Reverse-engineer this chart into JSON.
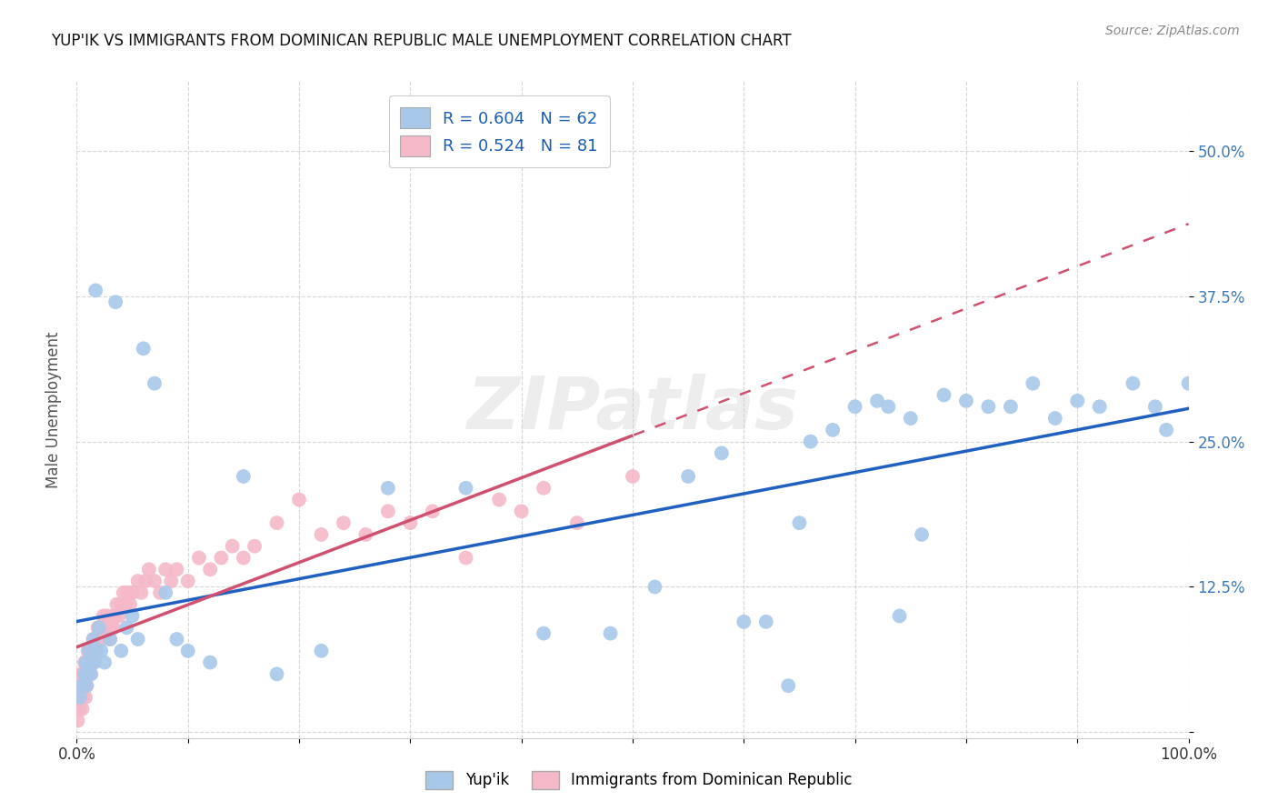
{
  "title": "YUP'IK VS IMMIGRANTS FROM DOMINICAN REPUBLIC MALE UNEMPLOYMENT CORRELATION CHART",
  "source": "Source: ZipAtlas.com",
  "ylabel": "Male Unemployment",
  "xlim": [
    0,
    1.0
  ],
  "ylim": [
    -0.005,
    0.56
  ],
  "xticks": [
    0.0,
    0.1,
    0.2,
    0.3,
    0.4,
    0.5,
    0.6,
    0.7,
    0.8,
    0.9,
    1.0
  ],
  "xticklabels": [
    "0.0%",
    "",
    "",
    "",
    "",
    "",
    "",
    "",
    "",
    "",
    "100.0%"
  ],
  "ytick_positions": [
    0.0,
    0.125,
    0.25,
    0.375,
    0.5
  ],
  "ytick_labels": [
    "",
    "12.5%",
    "25.0%",
    "37.5%",
    "50.0%"
  ],
  "legend1_label": "R = 0.604   N = 62",
  "legend2_label": "R = 0.524   N = 81",
  "series1_color": "#a8c8ea",
  "series2_color": "#f5b8c8",
  "line1_color": "#2060c0",
  "line2_color": "#d05070",
  "background_color": "#ffffff",
  "watermark": "ZIPatlas",
  "yupik_x": [
    0.003,
    0.005,
    0.007,
    0.008,
    0.009,
    0.01,
    0.011,
    0.012,
    0.013,
    0.015,
    0.016,
    0.017,
    0.018,
    0.02,
    0.022,
    0.025,
    0.03,
    0.035,
    0.04,
    0.045,
    0.05,
    0.055,
    0.06,
    0.07,
    0.08,
    0.09,
    0.1,
    0.12,
    0.15,
    0.18,
    0.22,
    0.28,
    0.35,
    0.42,
    0.48,
    0.52,
    0.55,
    0.58,
    0.6,
    0.62,
    0.64,
    0.65,
    0.66,
    0.68,
    0.7,
    0.72,
    0.73,
    0.74,
    0.75,
    0.76,
    0.78,
    0.8,
    0.82,
    0.84,
    0.86,
    0.88,
    0.9,
    0.92,
    0.95,
    0.97,
    0.98,
    1.0
  ],
  "yupik_y": [
    0.03,
    0.04,
    0.05,
    0.06,
    0.04,
    0.05,
    0.07,
    0.06,
    0.05,
    0.08,
    0.06,
    0.38,
    0.07,
    0.09,
    0.07,
    0.06,
    0.08,
    0.37,
    0.07,
    0.09,
    0.1,
    0.08,
    0.33,
    0.3,
    0.12,
    0.08,
    0.07,
    0.06,
    0.22,
    0.05,
    0.07,
    0.21,
    0.21,
    0.085,
    0.085,
    0.125,
    0.22,
    0.24,
    0.095,
    0.095,
    0.04,
    0.18,
    0.25,
    0.26,
    0.28,
    0.285,
    0.28,
    0.1,
    0.27,
    0.17,
    0.29,
    0.285,
    0.28,
    0.28,
    0.3,
    0.27,
    0.285,
    0.28,
    0.3,
    0.28,
    0.26,
    0.3
  ],
  "dr_x": [
    0.001,
    0.002,
    0.003,
    0.003,
    0.004,
    0.004,
    0.005,
    0.005,
    0.006,
    0.006,
    0.007,
    0.007,
    0.008,
    0.008,
    0.009,
    0.009,
    0.01,
    0.01,
    0.011,
    0.012,
    0.012,
    0.013,
    0.014,
    0.015,
    0.015,
    0.016,
    0.017,
    0.018,
    0.019,
    0.02,
    0.021,
    0.022,
    0.023,
    0.024,
    0.025,
    0.026,
    0.027,
    0.028,
    0.03,
    0.031,
    0.032,
    0.033,
    0.035,
    0.036,
    0.038,
    0.04,
    0.042,
    0.044,
    0.046,
    0.048,
    0.05,
    0.055,
    0.058,
    0.062,
    0.065,
    0.07,
    0.075,
    0.08,
    0.085,
    0.09,
    0.1,
    0.11,
    0.12,
    0.13,
    0.14,
    0.15,
    0.16,
    0.18,
    0.2,
    0.22,
    0.24,
    0.26,
    0.28,
    0.3,
    0.32,
    0.35,
    0.38,
    0.4,
    0.42,
    0.45,
    0.5
  ],
  "dr_y": [
    0.01,
    0.02,
    0.03,
    0.04,
    0.03,
    0.05,
    0.02,
    0.04,
    0.03,
    0.05,
    0.04,
    0.06,
    0.03,
    0.05,
    0.04,
    0.06,
    0.05,
    0.07,
    0.06,
    0.05,
    0.07,
    0.06,
    0.07,
    0.06,
    0.08,
    0.07,
    0.08,
    0.07,
    0.09,
    0.08,
    0.09,
    0.08,
    0.09,
    0.1,
    0.09,
    0.1,
    0.09,
    0.1,
    0.08,
    0.09,
    0.1,
    0.09,
    0.1,
    0.11,
    0.1,
    0.11,
    0.12,
    0.11,
    0.12,
    0.11,
    0.12,
    0.13,
    0.12,
    0.13,
    0.14,
    0.13,
    0.12,
    0.14,
    0.13,
    0.14,
    0.13,
    0.15,
    0.14,
    0.15,
    0.16,
    0.15,
    0.16,
    0.18,
    0.2,
    0.17,
    0.18,
    0.17,
    0.19,
    0.18,
    0.19,
    0.15,
    0.2,
    0.19,
    0.21,
    0.18,
    0.22
  ]
}
